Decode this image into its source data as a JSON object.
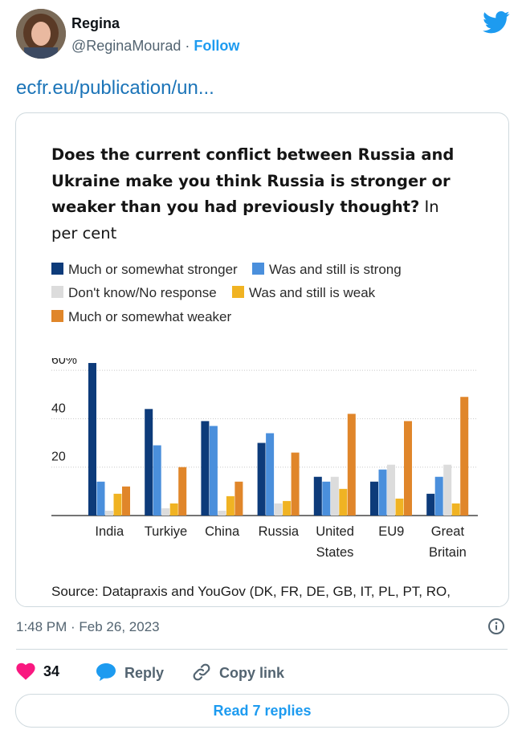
{
  "tweet": {
    "author_name": "Regina",
    "handle": "@ReginaMourad",
    "separator": "·",
    "follow_label": "Follow",
    "link_text": "ecfr.eu/publication/un...",
    "timestamp": "1:48 PM · Feb 26, 2023",
    "likes_count": "34",
    "reply_label": "Reply",
    "copy_link_label": "Copy link",
    "read_replies_label": "Read 7 replies"
  },
  "icons": {
    "brand": "twitter-bird-icon",
    "info": "info-icon",
    "like": "heart-icon",
    "reply": "speech-bubble-icon",
    "copy": "link-icon"
  },
  "colors": {
    "accent": "#1d9bf0",
    "like": "#f91880",
    "link": "#1b74b8"
  },
  "chart_data": {
    "type": "bar",
    "title_bold": "Does the current conflict between Russia and Ukraine make you think Russia is stronger or weaker than you had previously thought?",
    "title_rest": " In per cent",
    "categories": [
      "India",
      "Turkiye",
      "China",
      "Russia",
      "United States",
      "EU9",
      "Great Britain"
    ],
    "category_lines": [
      [
        "India"
      ],
      [
        "Turkiye"
      ],
      [
        "China"
      ],
      [
        "Russia"
      ],
      [
        "United",
        "States"
      ],
      [
        "EU9"
      ],
      [
        "Great",
        "Britain"
      ]
    ],
    "y_ticks": [
      "60%",
      "40",
      "20"
    ],
    "y_tick_values": [
      60,
      40,
      20
    ],
    "ylim": [
      0,
      65
    ],
    "grid": true,
    "series": [
      {
        "name": "Much or somewhat stronger",
        "color": "#0d3b7a",
        "values": [
          63,
          44,
          39,
          30,
          16,
          14,
          9
        ]
      },
      {
        "name": "Was and still is strong",
        "color": "#4a8fdc",
        "values": [
          14,
          29,
          37,
          34,
          14,
          19,
          16
        ]
      },
      {
        "name": "Don't know/No response",
        "color": "#dcdcdc",
        "values": [
          2,
          3,
          2,
          5,
          16,
          21,
          21
        ]
      },
      {
        "name": "Was and still is weak",
        "color": "#f0b323",
        "values": [
          9,
          5,
          8,
          6,
          11,
          7,
          5
        ]
      },
      {
        "name": "Much or somewhat weaker",
        "color": "#e0862a",
        "values": [
          12,
          20,
          14,
          26,
          42,
          39,
          49
        ]
      }
    ],
    "source": "Source: Datapraxis and YouGov (DK, FR, DE, GB, IT, PL, PT, RO,"
  }
}
